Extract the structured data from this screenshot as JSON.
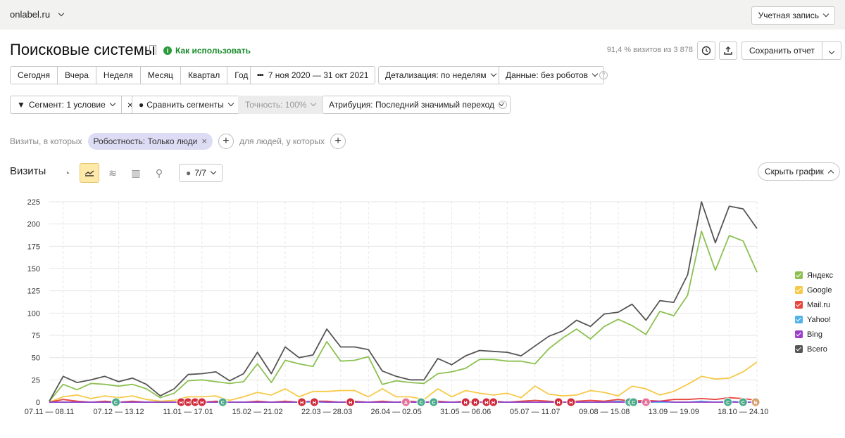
{
  "site": "onlabel.ru",
  "account_label": "Учетная запись",
  "page_title": "Поисковые системы",
  "how_to_use": "Как использовать",
  "visits_ratio": "91,4 % визитов из 3 878",
  "save_report": "Сохранить отчет",
  "period_buttons": [
    "Сегодня",
    "Вчера",
    "Неделя",
    "Месяц",
    "Квартал",
    "Год"
  ],
  "date_range": "7 ноя 2020 — 31 окт 2021",
  "detail_label": "Детализация: по неделям",
  "data_label": "Данные: без роботов",
  "segment_label": "Сегмент: 1 условие",
  "compare_label": "Сравнить сегменты",
  "accuracy_label": "Точность: 100%",
  "attribution_label": "Атрибуция: Последний значимый переход",
  "filter_prefix": "Визиты, в которых",
  "filter_chip": "Робостность: Только люди",
  "filter_suffix": "для людей, у которых",
  "section_title": "Визиты",
  "notes_count": "7/7",
  "hide_chart": "Скрыть график",
  "colors": {
    "accent_green": "#1a8c2c",
    "active_view": "#ffe9a8"
  },
  "chart_data": {
    "type": "line",
    "ylim": [
      0,
      225
    ],
    "y_ticks": [
      0,
      25,
      50,
      75,
      100,
      125,
      150,
      175,
      200,
      225
    ],
    "x_tick_labels": [
      "07.11 — 08.11",
      "07.12 — 13.12",
      "11.01 — 17.01",
      "15.02 — 21.02",
      "22.03 — 28.03",
      "26.04 — 02.05",
      "31.05 — 06.06",
      "05.07 — 11.07",
      "09.08 — 15.08",
      "13.09 — 19.09",
      "18.10 — 24.10"
    ],
    "x_tick_index": [
      0,
      5,
      10,
      15,
      20,
      25,
      30,
      35,
      40,
      45,
      50
    ],
    "series": [
      {
        "name": "Яндекс",
        "color": "#8cc152",
        "values": [
          1,
          20,
          14,
          21,
          20,
          18,
          20,
          15,
          5,
          10,
          24,
          25,
          23,
          21,
          23,
          43,
          22,
          47,
          43,
          40,
          68,
          46,
          47,
          51,
          20,
          24,
          22,
          21,
          32,
          34,
          38,
          48,
          48,
          46,
          46,
          43,
          60,
          72,
          82,
          71,
          85,
          93,
          86,
          76,
          102,
          97,
          120,
          192,
          148,
          187,
          181,
          146
        ]
      },
      {
        "name": "Google",
        "color": "#f7c948",
        "values": [
          0,
          6,
          8,
          4,
          7,
          5,
          7,
          3,
          1,
          2,
          6,
          6,
          7,
          2,
          6,
          11,
          8,
          15,
          6,
          12,
          12,
          13,
          13,
          6,
          15,
          6,
          6,
          3,
          15,
          6,
          13,
          10,
          8,
          10,
          5,
          18,
          9,
          7,
          8,
          13,
          11,
          7,
          18,
          15,
          8,
          12,
          20,
          29,
          26,
          27,
          34,
          45
        ]
      },
      {
        "name": "Mail.ru",
        "color": "#e8453c",
        "values": [
          0,
          3,
          1,
          0,
          1,
          0,
          1,
          0,
          0,
          0,
          1,
          0,
          1,
          0,
          0,
          1,
          0,
          1,
          0,
          1,
          1,
          0,
          1,
          0,
          1,
          0,
          1,
          0,
          1,
          0,
          1,
          0,
          1,
          0,
          1,
          2,
          1,
          0,
          1,
          2,
          1,
          3,
          1,
          2,
          1,
          3,
          3,
          4,
          3,
          5,
          4,
          2
        ]
      },
      {
        "name": "Yahoo!",
        "color": "#4fb3e8",
        "values": [
          0,
          0,
          0,
          0,
          0,
          0,
          0,
          0,
          0,
          0,
          0,
          0,
          0,
          0,
          0,
          0,
          0,
          0,
          0,
          0,
          0,
          0,
          0,
          0,
          0,
          0,
          0,
          0,
          0,
          0,
          0,
          0,
          0,
          0,
          0,
          0,
          0,
          0,
          0,
          0,
          0,
          1,
          0,
          0,
          0,
          0,
          0,
          1,
          0,
          1,
          0,
          0
        ]
      },
      {
        "name": "Bing",
        "color": "#9b3fc7",
        "values": [
          0,
          0,
          0,
          0,
          0,
          0,
          0,
          0,
          0,
          0,
          0,
          0,
          0,
          0,
          0,
          0,
          0,
          0,
          0,
          1,
          0,
          0,
          0,
          0,
          0,
          0,
          0,
          0,
          0,
          0,
          0,
          0,
          0,
          0,
          0,
          0,
          0,
          0,
          0,
          0,
          0,
          0,
          0,
          0,
          1,
          0,
          0,
          0,
          0,
          0,
          0,
          0
        ]
      },
      {
        "name": "Всего",
        "color": "#555555",
        "values": [
          1,
          29,
          22,
          25,
          29,
          23,
          27,
          20,
          7,
          15,
          31,
          32,
          34,
          24,
          32,
          56,
          32,
          62,
          50,
          53,
          82,
          62,
          62,
          59,
          35,
          29,
          25,
          25,
          49,
          42,
          52,
          58,
          57,
          56,
          52,
          63,
          74,
          80,
          92,
          85,
          99,
          101,
          110,
          92,
          114,
          112,
          143,
          225,
          179,
          220,
          217,
          195
        ]
      }
    ],
    "annotations": [
      {
        "index": 4.8,
        "letter": "С",
        "color": "#4aaa8a"
      },
      {
        "index": 9.5,
        "letter": "Н",
        "color": "#d02a3a"
      },
      {
        "index": 10.0,
        "letter": "Н",
        "color": "#d02a3a"
      },
      {
        "index": 10.5,
        "letter": "Н",
        "color": "#d02a3a"
      },
      {
        "index": 11.0,
        "letter": "Н",
        "color": "#d02a3a"
      },
      {
        "index": 12.5,
        "letter": "С",
        "color": "#4aaa8a"
      },
      {
        "index": 18.2,
        "letter": "Н",
        "color": "#d02a3a"
      },
      {
        "index": 19.1,
        "letter": "Н",
        "color": "#d02a3a"
      },
      {
        "index": 21.7,
        "letter": "Н",
        "color": "#d02a3a"
      },
      {
        "index": 25.7,
        "letter": "А",
        "color": "#e57399"
      },
      {
        "index": 26.8,
        "letter": "С",
        "color": "#4aaa8a"
      },
      {
        "index": 27.7,
        "letter": "С",
        "color": "#4aaa8a"
      },
      {
        "index": 30.0,
        "letter": "Н",
        "color": "#d02a3a"
      },
      {
        "index": 30.7,
        "letter": "Н",
        "color": "#d02a3a"
      },
      {
        "index": 31.5,
        "letter": "Н",
        "color": "#d02a3a"
      },
      {
        "index": 32.0,
        "letter": "Н",
        "color": "#d02a3a"
      },
      {
        "index": 36.7,
        "letter": "Н",
        "color": "#d02a3a"
      },
      {
        "index": 37.6,
        "letter": "Н",
        "color": "#d02a3a"
      },
      {
        "index": 41.8,
        "letter": "С",
        "color": "#4aaa8a"
      },
      {
        "index": 42.1,
        "letter": "С",
        "color": "#4aaa8a"
      },
      {
        "index": 43.0,
        "letter": "А",
        "color": "#e57399"
      },
      {
        "index": 48.9,
        "letter": "С",
        "color": "#4aaa8a"
      },
      {
        "index": 50.0,
        "letter": "С",
        "color": "#4aaa8a"
      },
      {
        "index": 50.9,
        "letter": "Б",
        "color": "#d6a070"
      }
    ]
  }
}
